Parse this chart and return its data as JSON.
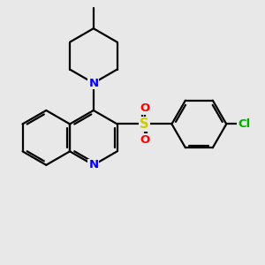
{
  "background_color": "#e8e8e8",
  "bond_color": "#000000",
  "N_color": "#0000ff",
  "S_color": "#cccc00",
  "O_color": "#ff0000",
  "Cl_color": "#00aa00",
  "line_width": 1.6,
  "figsize": [
    3.0,
    3.0
  ],
  "dpi": 100,
  "xlim": [
    0,
    10
  ],
  "ylim": [
    0,
    10
  ]
}
